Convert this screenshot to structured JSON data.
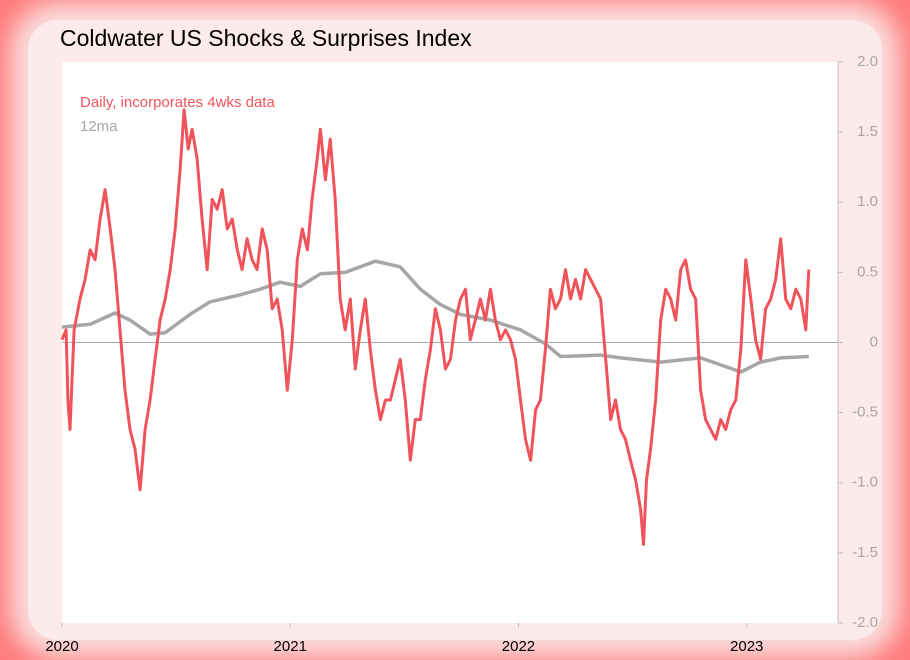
{
  "chart_data": {
    "type": "line",
    "title": "Coldwater US Shocks & Surprises Index",
    "xlim": [
      2020,
      2023.4
    ],
    "xticks": [
      2020,
      2021,
      2022,
      2023
    ],
    "ylim": [
      -2,
      2
    ],
    "yticks": [
      {
        "value": 2,
        "label": "2.0"
      },
      1.5,
      {
        "value": 1,
        "label": "1.0"
      },
      0.5,
      0,
      -0.5,
      {
        "value": -1,
        "label": "-1.0"
      },
      -1.5,
      {
        "value": -2,
        "label": "-2.0"
      }
    ],
    "series": [
      {
        "name": "Daily, incorporates 4wks data",
        "color": "#f0545a",
        "x": [
          2020.0,
          2020.018,
          2020.026,
          2020.035,
          2020.053,
          2020.079,
          2020.101,
          2020.123,
          2020.145,
          2020.167,
          2020.189,
          2020.211,
          2020.232,
          2020.254,
          2020.276,
          2020.298,
          2020.32,
          2020.342,
          2020.364,
          2020.386,
          2020.408,
          2020.43,
          2020.452,
          2020.474,
          2020.496,
          2020.518,
          2020.535,
          2020.553,
          2020.57,
          2020.592,
          2020.614,
          2020.636,
          2020.658,
          2020.68,
          2020.702,
          2020.724,
          2020.746,
          2020.768,
          2020.789,
          2020.811,
          2020.833,
          2020.855,
          2020.877,
          2020.899,
          2020.921,
          2020.943,
          2020.965,
          2020.987,
          2021.009,
          2021.031,
          2021.053,
          2021.075,
          2021.096,
          2021.118,
          2021.132,
          2021.154,
          2021.175,
          2021.197,
          2021.219,
          2021.241,
          2021.263,
          2021.285,
          2021.307,
          2021.329,
          2021.351,
          2021.373,
          2021.395,
          2021.417,
          2021.439,
          2021.461,
          2021.482,
          2021.504,
          2021.526,
          2021.548,
          2021.57,
          2021.592,
          2021.614,
          2021.636,
          2021.658,
          2021.68,
          2021.702,
          2021.724,
          2021.746,
          2021.768,
          2021.789,
          2021.811,
          2021.833,
          2021.855,
          2021.877,
          2021.899,
          2021.921,
          2021.943,
          2021.965,
          2021.987,
          2022.009,
          2022.031,
          2022.053,
          2022.075,
          2022.096,
          2022.118,
          2022.14,
          2022.162,
          2022.184,
          2022.206,
          2022.228,
          2022.25,
          2022.272,
          2022.294,
          2022.316,
          2022.338,
          2022.36,
          2022.382,
          2022.404,
          2022.425,
          2022.447,
          2022.469,
          2022.491,
          2022.513,
          2022.535,
          2022.548,
          2022.561,
          2022.579,
          2022.601,
          2022.623,
          2022.645,
          2022.667,
          2022.689,
          2022.711,
          2022.732,
          2022.754,
          2022.776,
          2022.798,
          2022.82,
          2022.842,
          2022.864,
          2022.886,
          2022.908,
          2022.93,
          2022.952,
          2022.974,
          2022.996,
          2023.018,
          2023.039,
          2023.061,
          2023.083,
          2023.105,
          2023.127,
          2023.149,
          2023.171,
          2023.193,
          2023.215,
          2023.237,
          2023.259,
          2023.272
        ],
        "values": [
          0.02,
          0.09,
          -0.41,
          -0.62,
          0.09,
          0.31,
          0.45,
          0.66,
          0.59,
          0.88,
          1.09,
          0.81,
          0.52,
          0.09,
          -0.34,
          -0.62,
          -0.76,
          -1.05,
          -0.62,
          -0.41,
          -0.12,
          0.16,
          0.31,
          0.52,
          0.81,
          1.24,
          1.66,
          1.38,
          1.52,
          1.31,
          0.88,
          0.52,
          1.02,
          0.95,
          1.09,
          0.81,
          0.88,
          0.66,
          0.52,
          0.74,
          0.59,
          0.52,
          0.81,
          0.66,
          0.24,
          0.31,
          0.09,
          -0.34,
          0.02,
          0.59,
          0.81,
          0.66,
          1.02,
          1.31,
          1.52,
          1.16,
          1.45,
          1.02,
          0.31,
          0.09,
          0.31,
          -0.19,
          0.09,
          0.31,
          -0.05,
          -0.34,
          -0.55,
          -0.41,
          -0.41,
          -0.26,
          -0.12,
          -0.41,
          -0.84,
          -0.55,
          -0.55,
          -0.26,
          -0.05,
          0.24,
          0.09,
          -0.19,
          -0.12,
          0.16,
          0.31,
          0.38,
          0.02,
          0.16,
          0.31,
          0.16,
          0.38,
          0.16,
          0.02,
          0.09,
          0.02,
          -0.12,
          -0.41,
          -0.69,
          -0.84,
          -0.48,
          -0.41,
          -0.05,
          0.38,
          0.24,
          0.31,
          0.52,
          0.31,
          0.45,
          0.31,
          0.52,
          0.45,
          0.38,
          0.31,
          -0.12,
          -0.55,
          -0.41,
          -0.62,
          -0.69,
          -0.84,
          -0.98,
          -1.19,
          -1.44,
          -0.98,
          -0.76,
          -0.41,
          0.16,
          0.38,
          0.31,
          0.16,
          0.52,
          0.59,
          0.38,
          0.31,
          -0.34,
          -0.55,
          -0.62,
          -0.69,
          -0.55,
          -0.62,
          -0.48,
          -0.41,
          -0.05,
          0.59,
          0.31,
          0.02,
          -0.12,
          0.24,
          0.31,
          0.45,
          0.74,
          0.31,
          0.24,
          0.38,
          0.31,
          0.09,
          0.52
        ]
      },
      {
        "name": "12ma",
        "color": "#a6a6a6",
        "x": [
          2020.0,
          2020.123,
          2020.232,
          2020.298,
          2020.386,
          2020.452,
          2020.561,
          2020.649,
          2020.781,
          2020.868,
          2020.956,
          2021.044,
          2021.132,
          2021.241,
          2021.307,
          2021.373,
          2021.482,
          2021.57,
          2021.658,
          2021.746,
          2021.877,
          2022.009,
          2022.118,
          2022.184,
          2022.36,
          2022.447,
          2022.623,
          2022.798,
          2022.886,
          2022.974,
          2023.061,
          2023.149,
          2023.272
        ],
        "values": [
          0.11,
          0.13,
          0.21,
          0.16,
          0.06,
          0.07,
          0.2,
          0.29,
          0.34,
          0.38,
          0.43,
          0.4,
          0.49,
          0.5,
          0.54,
          0.58,
          0.54,
          0.38,
          0.27,
          0.2,
          0.16,
          0.09,
          -0.01,
          -0.1,
          -0.09,
          -0.11,
          -0.14,
          -0.11,
          -0.16,
          -0.21,
          -0.14,
          -0.11,
          -0.1
        ]
      }
    ]
  }
}
